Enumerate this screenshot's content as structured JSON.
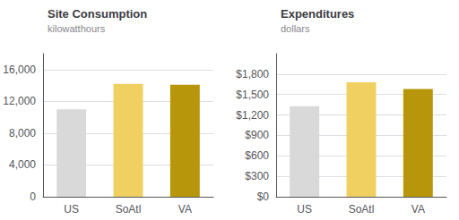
{
  "chart_data": [
    {
      "type": "bar",
      "title": "Site Consumption",
      "subtitle": "kilowatthours",
      "categories": [
        "US",
        "SoAtl",
        "VA"
      ],
      "values": [
        11000,
        14200,
        14100
      ],
      "colors": [
        "#d9d9d9",
        "#f0d060",
        "#b8960c"
      ],
      "ylim": [
        0,
        18000
      ],
      "yticks": [
        0,
        {
          "value": 4000,
          "label": "4,000"
        },
        {
          "value": 8000,
          "label": "8,000"
        },
        {
          "value": 12000,
          "label": "12,000"
        },
        {
          "value": 16000,
          "label": "16,000"
        }
      ],
      "grid": true
    },
    {
      "type": "bar",
      "title": "Expenditures",
      "subtitle": "dollars",
      "categories": [
        "US",
        "SoAtl",
        "VA"
      ],
      "values": [
        1330,
        1680,
        1580
      ],
      "colors": [
        "#d9d9d9",
        "#f0d060",
        "#b8960c"
      ],
      "ylim": [
        0,
        2100
      ],
      "yticks": [
        {
          "value": 0,
          "label": "$0"
        },
        {
          "value": 300,
          "label": "$300"
        },
        {
          "value": 600,
          "label": "$600"
        },
        {
          "value": 900,
          "label": "$900"
        },
        {
          "value": 1200,
          "label": "$1,200"
        },
        {
          "value": 1500,
          "label": "$1,500"
        },
        {
          "value": 1800,
          "label": "$1,800"
        }
      ],
      "grid": true
    }
  ]
}
